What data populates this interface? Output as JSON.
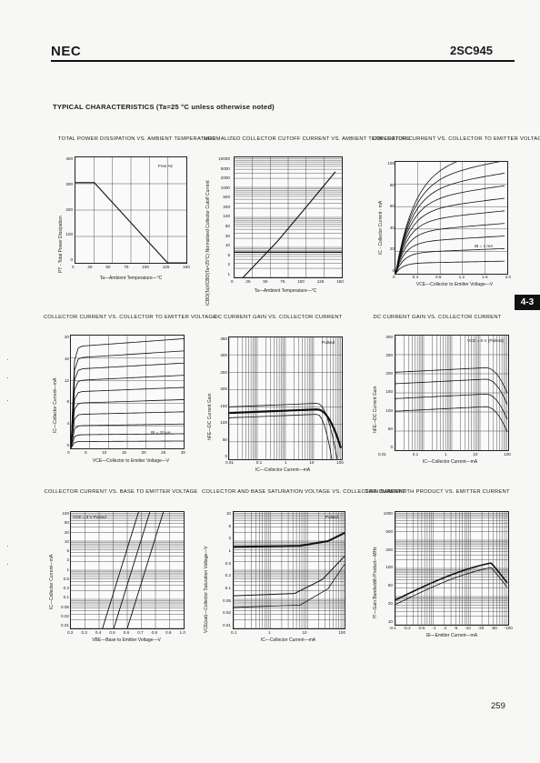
{
  "header": {
    "brand": "NEC",
    "part_number": "2SC945"
  },
  "section_title": "TYPICAL CHARACTERISTICS (Ta=25 °C unless otherwise noted)",
  "section_tab": "4-3",
  "page_number": "259",
  "panels": [
    {
      "title": "TOTAL POWER DISSIPATION vs. AMBIENT TEMPERATURE",
      "ylabel": "PT - Total Power Dissipation",
      "xlabel": "Ta—Ambient Temperature—°C",
      "xticks": [
        "0",
        "25",
        "50",
        "75",
        "100",
        "125",
        "150"
      ],
      "yticks": [
        "400",
        "300",
        "200",
        "100",
        "0"
      ],
      "note": "Free Air"
    },
    {
      "title": "NORMALIZED COLLECTOR CUTOFF CURRENT vs. AMBIENT TEMPERATURE",
      "ylabel": "ICBO(Ta)/ICBO(Ta=25°C) Normalized Collector Cutoff Current",
      "xlabel": "Ta—Ambient Temperature—°C",
      "xticks": [
        "0",
        "25",
        "50",
        "75",
        "100",
        "125",
        "150"
      ],
      "yticks": [
        "10000",
        "5000",
        "2000",
        "1000",
        "500",
        "200",
        "100",
        "50",
        "20",
        "10",
        "5",
        "2",
        "1"
      ]
    },
    {
      "title": "COLLECTOR CURRENT vs. COLLECTOR TO EMITTER VOLTAGE",
      "ylabel": "IC - Collector Current - mA",
      "xlabel": "VCE—Collector to Emitter Voltage—V",
      "xticks": [
        "0",
        "0.4",
        "0.8",
        "1.2",
        "1.6",
        "2.0"
      ],
      "yticks": [
        "100",
        "80",
        "60",
        "40",
        "20",
        "0"
      ],
      "note": "IB = 1 mA"
    },
    {
      "title": "COLLECTOR CURRENT vs. COLLECTOR TO EMITTER VOLTAGE",
      "ylabel": "IC—Collector Current—mA",
      "xlabel": "VCE—Collector to Emitter Voltage—V",
      "xticks": [
        "0",
        "5",
        "10",
        "15",
        "20",
        "25",
        "30"
      ],
      "yticks": [
        "20",
        "16",
        "12",
        "8",
        "4",
        "0"
      ],
      "note": "IB = 10 μA"
    },
    {
      "title": "DC CURRENT GAIN vs. COLLECTOR CURRENT",
      "ylabel": "hFE—DC Current Gain",
      "xlabel": "IC—Collector Current—mA",
      "xticks": [
        "0.01",
        "0.1",
        "1",
        "10",
        "100"
      ],
      "yticks": [
        "350",
        "300",
        "250",
        "200",
        "150",
        "100",
        "50",
        "0"
      ],
      "note": "Pulsed"
    },
    {
      "title": "DC CURRENT GAIN vs. COLLECTOR CURRENT",
      "ylabel": "hFE—DC Current Gain",
      "xlabel": "IC—Collector Current—mA",
      "xticks": [
        "0.01",
        "0.1",
        "1",
        "10",
        "100"
      ],
      "yticks": [
        "300",
        "250",
        "200",
        "150",
        "100",
        "50",
        "0"
      ],
      "note": "VCE = 6 V (Pulsed)"
    },
    {
      "title": "COLLECTOR CURRENT vs. BASE TO EMITTER VOLTAGE",
      "ylabel": "IC—Collector Current—mA",
      "xlabel": "VBE—Base to Emitter Voltage—V",
      "xticks": [
        "0.2",
        "0.3",
        "0.4",
        "0.5",
        "0.6",
        "0.7",
        "0.8",
        "0.9",
        "1.0"
      ],
      "yticks": [
        "100",
        "50",
        "20",
        "10",
        "5",
        "2",
        "1",
        "0.5",
        "0.2",
        "0.1",
        "0.05",
        "0.02",
        "0.01"
      ],
      "note": "VCE = 6 V Pulsed"
    },
    {
      "title": "COLLECTOR AND BASE SATURATION VOLTAGE vs. COLLECTOR CURRENT",
      "ylabel": "VCE(sat)—Collector Saturation Voltage—V",
      "xlabel": "IC—Collector Current—mA",
      "xticks": [
        "0.1",
        "1",
        "10",
        "100"
      ],
      "yticks": [
        "10",
        "5",
        "2",
        "1",
        "0.5",
        "0.2",
        "0.1",
        "0.05",
        "0.02",
        "0.01"
      ],
      "note": "Pulsed"
    },
    {
      "title": "GAIN BANDWIDTH PRODUCT vs. EMITTER CURRENT",
      "ylabel": "fT—Gain Bandwidth Product—MHz",
      "xlabel": "IE—Emitter Current—mA",
      "xticks": [
        "-0.1",
        "-0.2",
        "-0.5",
        "-1",
        "-2",
        "-5",
        "-10",
        "-20",
        "-50",
        "-100"
      ],
      "yticks": [
        "1000",
        "500",
        "200",
        "100",
        "50",
        "20",
        "10"
      ]
    }
  ]
}
